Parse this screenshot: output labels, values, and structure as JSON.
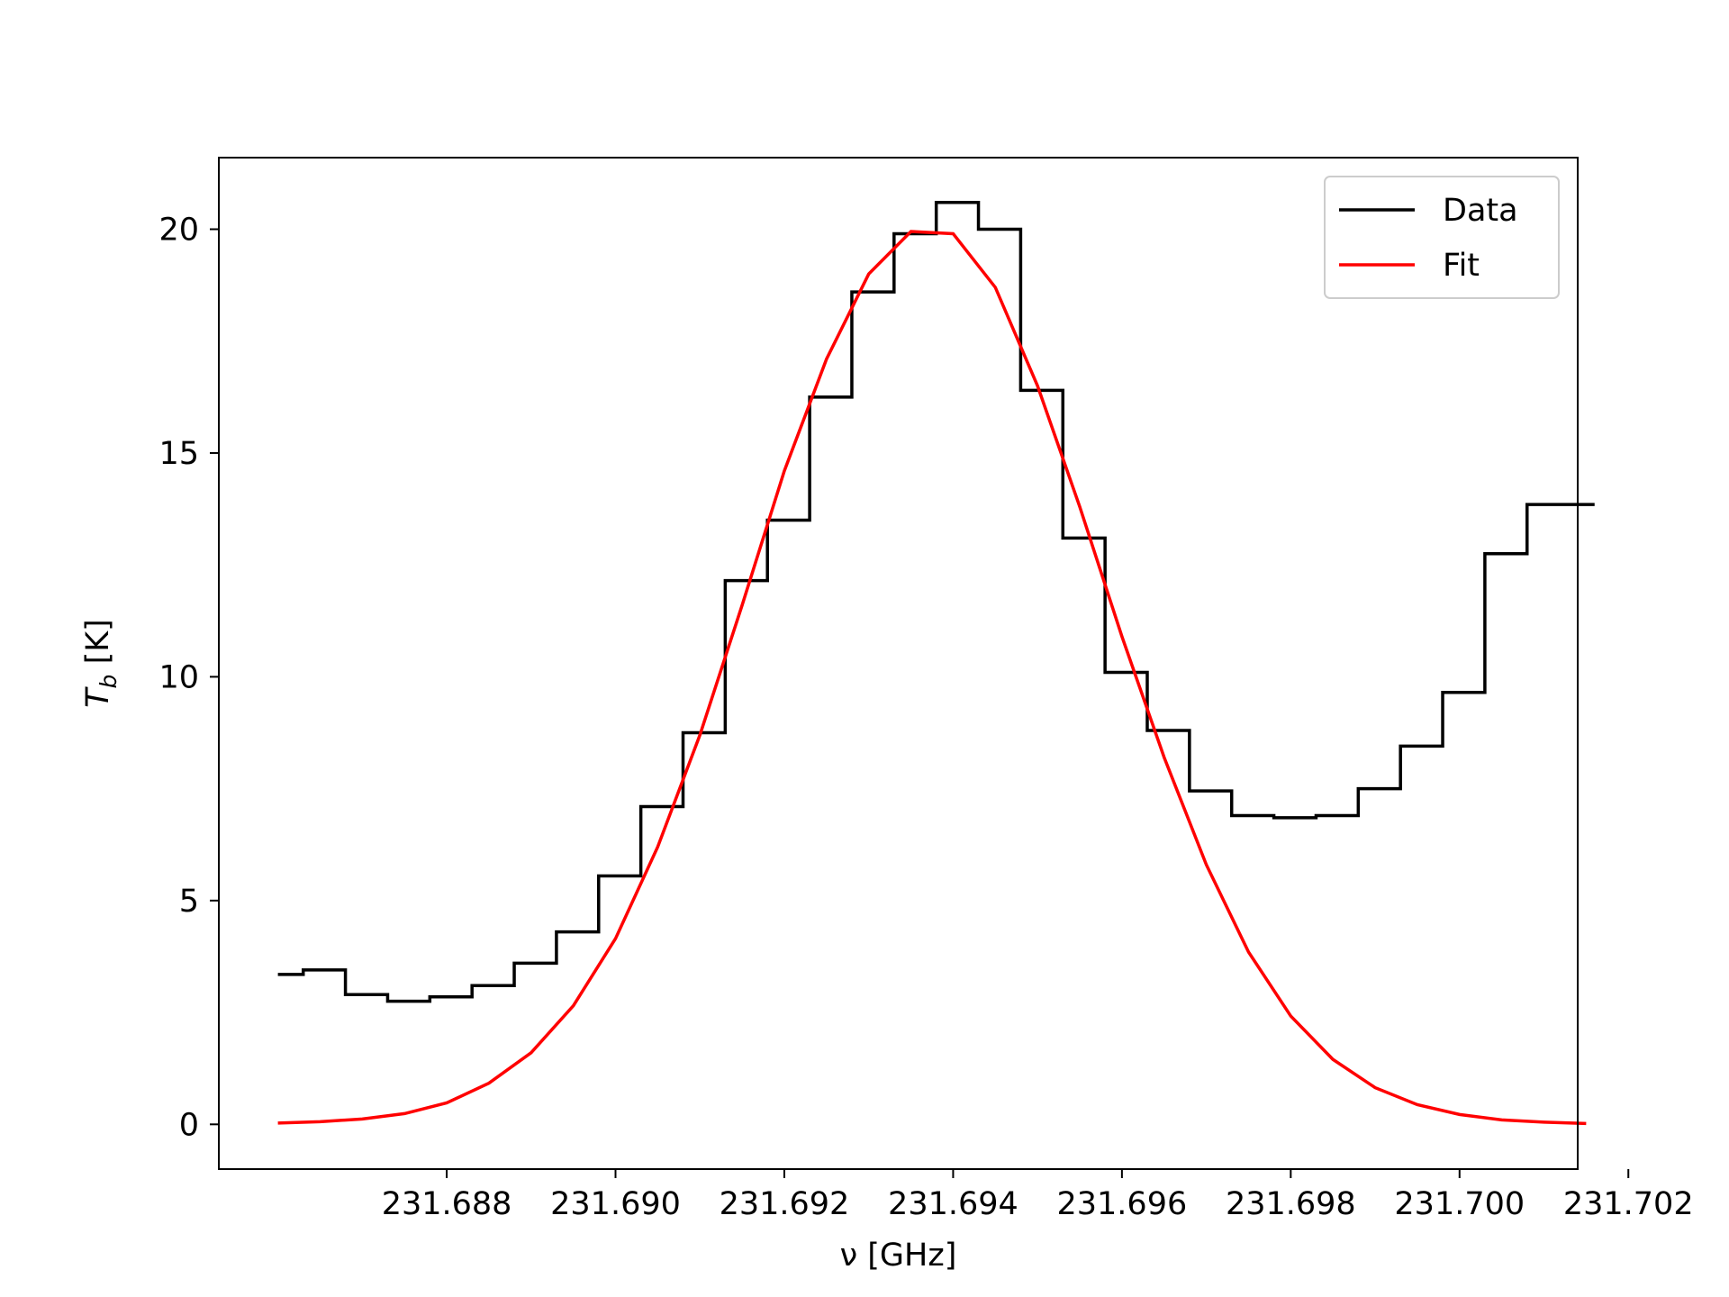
{
  "chart_data": {
    "type": "line",
    "title": "",
    "xlabel": "ν [GHz]",
    "ylabel": "T_b [K]",
    "ylabel_main": "T",
    "ylabel_sub": "b",
    "ylabel_unit": " [K]",
    "xlim": [
      231.6853,
      231.7014
    ],
    "ylim": [
      -1.0,
      21.6
    ],
    "x_ticks": [
      231.688,
      231.69,
      231.692,
      231.694,
      231.696,
      231.698,
      231.7,
      231.702
    ],
    "x_tick_labels": [
      "231.688",
      "231.690",
      "231.692",
      "231.694",
      "231.696",
      "231.698",
      "231.700",
      "231.702"
    ],
    "y_ticks": [
      0,
      5,
      10,
      15,
      20
    ],
    "y_tick_labels": [
      "0",
      "5",
      "10",
      "15",
      "20"
    ],
    "grid": false,
    "legend_position": "top-right",
    "series": [
      {
        "name": "Data",
        "kind": "step",
        "color": "#000000",
        "x": [
          231.686,
          231.6863,
          231.6868,
          231.6873,
          231.6878,
          231.6883,
          231.6888,
          231.6893,
          231.6898,
          231.6903,
          231.6908,
          231.6913,
          231.6918,
          231.6923,
          231.6928,
          231.6933,
          231.6938,
          231.6943,
          231.6948,
          231.6953,
          231.6958,
          231.6963,
          231.6968,
          231.6973,
          231.6978,
          231.6983,
          231.6988,
          231.6993,
          231.6998,
          231.7003,
          231.7008,
          231.7013,
          231.7016
        ],
        "y": [
          3.35,
          3.45,
          2.9,
          2.75,
          2.85,
          3.1,
          3.6,
          4.3,
          5.55,
          7.1,
          8.75,
          12.15,
          13.5,
          16.25,
          18.6,
          19.9,
          20.6,
          20.0,
          16.4,
          13.1,
          10.1,
          8.8,
          7.45,
          6.9,
          6.85,
          6.9,
          7.5,
          8.45,
          9.65,
          12.75,
          13.85,
          13.85,
          13.85
        ]
      },
      {
        "name": "Fit",
        "kind": "line",
        "color": "#ff0000",
        "x": [
          231.686,
          231.6865,
          231.687,
          231.6875,
          231.688,
          231.6885,
          231.689,
          231.6895,
          231.69,
          231.6905,
          231.691,
          231.6915,
          231.692,
          231.6925,
          231.693,
          231.6935,
          231.694,
          231.6945,
          231.695,
          231.6955,
          231.696,
          231.6965,
          231.697,
          231.6975,
          231.698,
          231.6985,
          231.699,
          231.6995,
          231.7,
          231.7005,
          231.701,
          231.7015
        ],
        "y": [
          0.03,
          0.06,
          0.12,
          0.24,
          0.48,
          0.92,
          1.6,
          2.65,
          4.15,
          6.2,
          8.7,
          11.6,
          14.6,
          17.1,
          19.0,
          19.95,
          19.9,
          18.7,
          16.5,
          13.8,
          10.9,
          8.2,
          5.8,
          3.85,
          2.42,
          1.45,
          0.82,
          0.44,
          0.22,
          0.1,
          0.05,
          0.02
        ]
      }
    ]
  }
}
